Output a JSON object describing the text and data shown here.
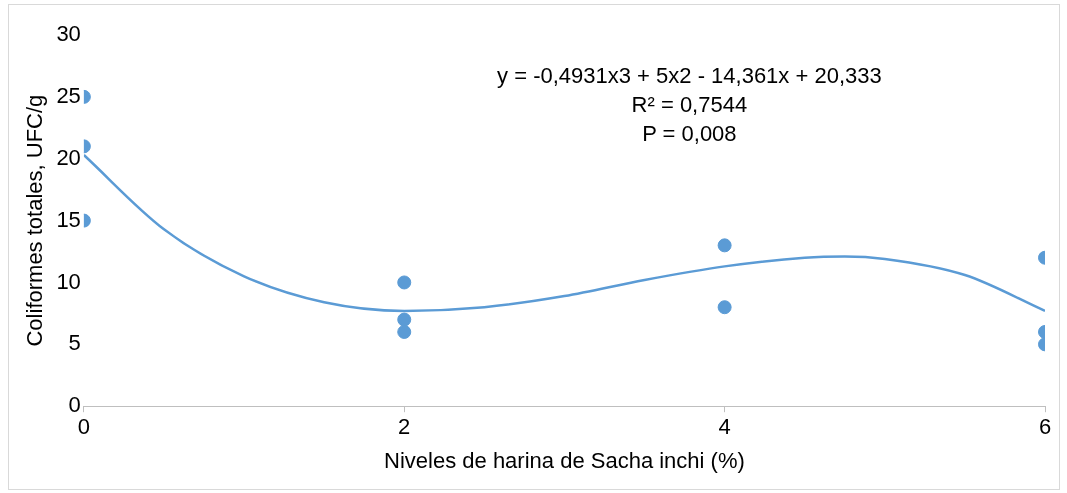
{
  "chart_data": {
    "type": "scatter",
    "xlabel": "Niveles de harina de Sacha inchi (%)",
    "ylabel": "Coliformes totales, UFC/g",
    "annotations": [
      "y = -0,4931x3 + 5x2 - 14,361x + 20,333",
      "R² = 0,7544",
      "P = 0,008"
    ],
    "xlim": [
      0,
      6
    ],
    "xticks": [
      0,
      2,
      4,
      6
    ],
    "ylim": [
      0,
      30
    ],
    "yticks": [
      0,
      5,
      10,
      15,
      20,
      25,
      30
    ],
    "grid": false,
    "legend": false,
    "marker": "circle",
    "series": [
      {
        "color": "#5b9bd5",
        "x": [
          0,
          0,
          0,
          2,
          2,
          2,
          4,
          4,
          6,
          6,
          6
        ],
        "values": [
          25,
          21,
          15,
          10,
          7,
          6,
          13,
          8,
          12,
          6,
          5
        ]
      },
      {
        "type": "line",
        "color": "#5b9bd5",
        "marker": "none",
        "x": [
          0,
          0.5,
          1,
          1.5,
          2,
          2.5,
          3,
          3.5,
          4,
          4.5,
          4.75,
          5,
          5.5,
          6
        ],
        "values": [
          20.3,
          14.3,
          10.5,
          8.4,
          7.7,
          8.0,
          8.9,
          10.2,
          11.3,
          12.0,
          12.1,
          11.9,
          10.6,
          7.7
        ]
      }
    ]
  }
}
